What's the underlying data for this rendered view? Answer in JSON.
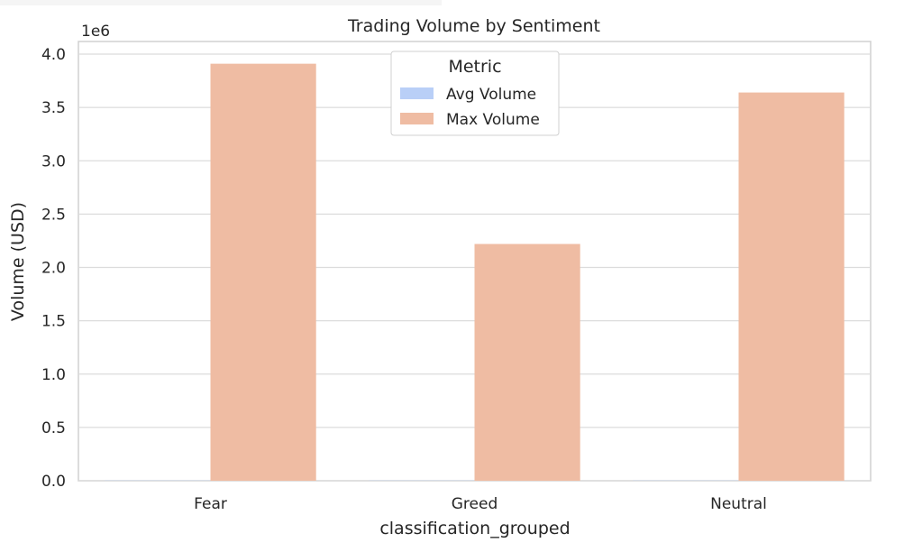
{
  "chart_data": {
    "type": "bar",
    "title": "Trading Volume by Sentiment",
    "xlabel": "classification_grouped",
    "ylabel": "Volume (USD)",
    "y_scale_label": "1e6",
    "ylim": [
      0,
      4.1
    ],
    "yticks": [
      "0.0",
      "0.5",
      "1.0",
      "1.5",
      "2.0",
      "2.5",
      "3.0",
      "3.5",
      "4.0"
    ],
    "categories": [
      "Fear",
      "Greed",
      "Neutral"
    ],
    "series": [
      {
        "name": "Avg Volume",
        "color": "#b9cff7",
        "values": [
          0.002,
          0.002,
          0.002
        ]
      },
      {
        "name": "Max Volume",
        "color": "#efbca3",
        "values": [
          3.91,
          2.22,
          3.64
        ]
      }
    ],
    "legend": {
      "title": "Metric",
      "placement": "top-center"
    },
    "grid": true
  }
}
